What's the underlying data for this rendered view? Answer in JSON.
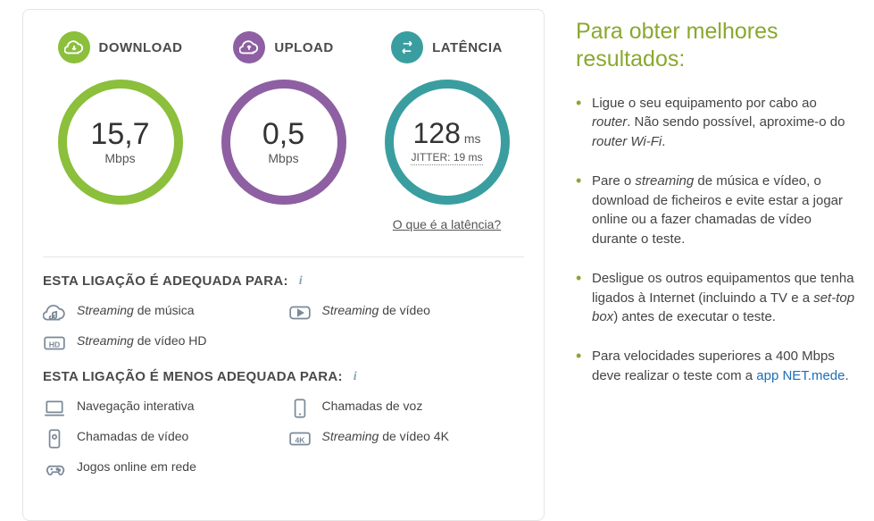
{
  "metrics": {
    "download": {
      "label": "DOWNLOAD",
      "value": "15,7",
      "unit": "Mbps",
      "icon_bg": "#8bbf3c",
      "ring_color": "#8bbf3c"
    },
    "upload": {
      "label": "UPLOAD",
      "value": "0,5",
      "unit": "Mbps",
      "icon_bg": "#8e5fa2",
      "ring_color": "#8e5fa2"
    },
    "latency": {
      "label": "LATÊNCIA",
      "value": "128",
      "unit": "ms",
      "jitter_label": "JITTER:",
      "jitter_value": "19 ms",
      "icon_bg": "#3a9ea0",
      "ring_color": "#3a9ea0",
      "help_link": "O que é a latência?"
    }
  },
  "adequate": {
    "title": "ESTA LIGAÇÃO É ADEQUADA PARA:",
    "items": [
      {
        "html": "<em>Streaming</em> de música",
        "icon": "music"
      },
      {
        "html": "<em>Streaming</em> de vídeo",
        "icon": "video"
      },
      {
        "html": "<em>Streaming</em> de vídeo HD",
        "icon": "hd"
      }
    ]
  },
  "less_adequate": {
    "title": "ESTA LIGAÇÃO É MENOS ADEQUADA PARA:",
    "items": [
      {
        "html": "Navegação interativa",
        "icon": "laptop"
      },
      {
        "html": "Chamadas de voz",
        "icon": "phone"
      },
      {
        "html": "Chamadas de vídeo",
        "icon": "videocall"
      },
      {
        "html": "<em>Streaming</em> de vídeo 4K",
        "icon": "4k"
      },
      {
        "html": "Jogos online em rede",
        "icon": "game"
      }
    ]
  },
  "sidebar": {
    "title": "Para obter melhores resultados:",
    "tips": [
      "Ligue o seu equipamento por cabo ao <em>router</em>. Não sendo possível, aproxime-o do <em>router Wi-Fi</em>.",
      "Pare o <em>streaming</em> de música e vídeo, o download de ficheiros e evite estar a jogar online ou a fazer chamadas de vídeo durante o teste.",
      "Desligue os outros equipamentos que tenha ligados à Internet (incluindo a TV e a <em>set-top box</em>) antes de executar o teste.",
      "Para velocidades superiores a 400 Mbps deve realizar o teste com a <a href='#'>app NET.mede</a>."
    ]
  }
}
